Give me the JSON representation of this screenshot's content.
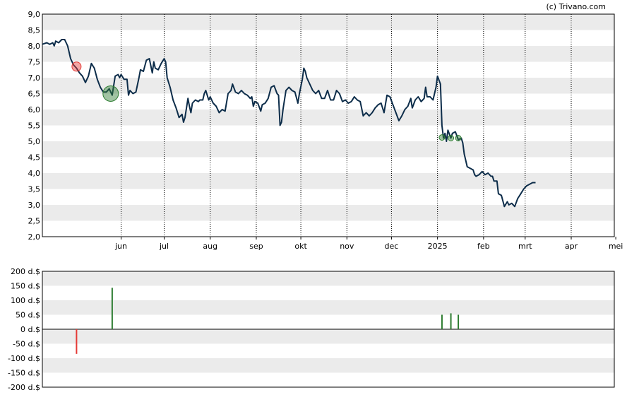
{
  "watermark": "(c) Trivano.com",
  "colors": {
    "price_line": "#0d2d4a",
    "band": "#ebebeb",
    "grid": "#000000",
    "buy": "#2e7d32",
    "sell": "#e53935"
  },
  "chart_data": [
    {
      "type": "line",
      "name": "price",
      "ylim": [
        2.0,
        9.0
      ],
      "y_ticks": [
        "2,0",
        "2,5",
        "3,0",
        "3,5",
        "4,0",
        "4,5",
        "5,0",
        "5,5",
        "6,0",
        "6,5",
        "7,0",
        "7,5",
        "8,0",
        "8,5",
        "9,0"
      ],
      "x_ticks": [
        "jun",
        "jul",
        "aug",
        "sep",
        "okt",
        "nov",
        "dec",
        "2025",
        "feb",
        "mrt",
        "apr",
        "mei"
      ],
      "x_range_days": 365,
      "x_tick_days": [
        53,
        82,
        113,
        144,
        174,
        205,
        235,
        266,
        297,
        325,
        356,
        386
      ],
      "series": [
        {
          "values": [
            [
              0,
              8.05
            ],
            [
              3,
              8.1
            ],
            [
              5,
              8.05
            ],
            [
              7,
              8.1
            ],
            [
              8,
              8.0
            ],
            [
              9,
              8.15
            ],
            [
              11,
              8.1
            ],
            [
              13,
              8.2
            ],
            [
              15,
              8.2
            ],
            [
              17,
              8.0
            ],
            [
              19,
              7.6
            ],
            [
              21,
              7.4
            ],
            [
              23,
              7.3
            ],
            [
              25,
              7.15
            ],
            [
              27,
              7.05
            ],
            [
              29,
              6.85
            ],
            [
              31,
              7.05
            ],
            [
              33,
              7.45
            ],
            [
              35,
              7.3
            ],
            [
              37,
              6.95
            ],
            [
              39,
              6.7
            ],
            [
              41,
              6.55
            ],
            [
              43,
              6.55
            ],
            [
              45,
              6.65
            ],
            [
              47,
              6.45
            ],
            [
              49,
              7.05
            ],
            [
              51,
              7.1
            ],
            [
              52,
              7.0
            ],
            [
              53,
              7.1
            ],
            [
              55,
              6.95
            ],
            [
              57,
              6.95
            ],
            [
              58,
              6.45
            ],
            [
              59,
              6.6
            ],
            [
              61,
              6.5
            ],
            [
              63,
              6.55
            ],
            [
              65,
              7.0
            ],
            [
              66,
              7.25
            ],
            [
              68,
              7.2
            ],
            [
              70,
              7.55
            ],
            [
              72,
              7.6
            ],
            [
              74,
              7.15
            ],
            [
              75,
              7.5
            ],
            [
              76,
              7.3
            ],
            [
              78,
              7.25
            ],
            [
              80,
              7.45
            ],
            [
              82,
              7.6
            ],
            [
              83,
              7.5
            ],
            [
              84,
              7.0
            ],
            [
              86,
              6.7
            ],
            [
              88,
              6.3
            ],
            [
              90,
              6.05
            ],
            [
              92,
              5.75
            ],
            [
              94,
              5.85
            ],
            [
              95,
              5.6
            ],
            [
              96,
              5.75
            ],
            [
              98,
              6.35
            ],
            [
              99,
              6.1
            ],
            [
              100,
              5.9
            ],
            [
              101,
              6.2
            ],
            [
              103,
              6.3
            ],
            [
              105,
              6.25
            ],
            [
              106,
              6.3
            ],
            [
              108,
              6.3
            ],
            [
              109,
              6.5
            ],
            [
              110,
              6.6
            ],
            [
              112,
              6.3
            ],
            [
              113,
              6.4
            ],
            [
              115,
              6.2
            ],
            [
              117,
              6.1
            ],
            [
              119,
              5.9
            ],
            [
              121,
              6.0
            ],
            [
              123,
              5.95
            ],
            [
              125,
              6.5
            ],
            [
              127,
              6.6
            ],
            [
              128,
              6.8
            ],
            [
              130,
              6.55
            ],
            [
              132,
              6.5
            ],
            [
              134,
              6.6
            ],
            [
              136,
              6.5
            ],
            [
              138,
              6.45
            ],
            [
              140,
              6.35
            ],
            [
              141,
              6.4
            ],
            [
              142,
              6.1
            ],
            [
              143,
              6.25
            ],
            [
              145,
              6.2
            ],
            [
              147,
              5.95
            ],
            [
              148,
              6.15
            ],
            [
              150,
              6.2
            ],
            [
              152,
              6.35
            ],
            [
              154,
              6.7
            ],
            [
              156,
              6.75
            ],
            [
              158,
              6.5
            ],
            [
              159,
              6.45
            ],
            [
              160,
              5.5
            ],
            [
              161,
              5.6
            ],
            [
              162,
              6.0
            ],
            [
              164,
              6.6
            ],
            [
              166,
              6.7
            ],
            [
              168,
              6.6
            ],
            [
              170,
              6.55
            ],
            [
              172,
              6.2
            ],
            [
              173,
              6.5
            ],
            [
              175,
              6.95
            ],
            [
              176,
              7.3
            ],
            [
              177,
              7.2
            ],
            [
              178,
              7.0
            ],
            [
              180,
              6.8
            ],
            [
              182,
              6.6
            ],
            [
              184,
              6.5
            ],
            [
              186,
              6.6
            ],
            [
              188,
              6.35
            ],
            [
              190,
              6.35
            ],
            [
              192,
              6.6
            ],
            [
              194,
              6.3
            ],
            [
              196,
              6.3
            ],
            [
              198,
              6.6
            ],
            [
              200,
              6.5
            ],
            [
              202,
              6.25
            ],
            [
              204,
              6.3
            ],
            [
              206,
              6.2
            ],
            [
              208,
              6.25
            ],
            [
              210,
              6.4
            ],
            [
              212,
              6.3
            ],
            [
              214,
              6.25
            ],
            [
              216,
              5.8
            ],
            [
              218,
              5.9
            ],
            [
              220,
              5.8
            ],
            [
              222,
              5.9
            ],
            [
              224,
              6.05
            ],
            [
              226,
              6.15
            ],
            [
              228,
              6.2
            ],
            [
              230,
              5.9
            ],
            [
              232,
              6.45
            ],
            [
              234,
              6.4
            ],
            [
              236,
              6.15
            ],
            [
              238,
              5.9
            ],
            [
              240,
              5.65
            ],
            [
              242,
              5.8
            ],
            [
              244,
              6.0
            ],
            [
              246,
              6.1
            ],
            [
              248,
              6.35
            ],
            [
              249,
              6.05
            ],
            [
              251,
              6.3
            ],
            [
              253,
              6.4
            ],
            [
              255,
              6.25
            ],
            [
              257,
              6.35
            ],
            [
              258,
              6.7
            ],
            [
              259,
              6.4
            ],
            [
              261,
              6.4
            ],
            [
              263,
              6.3
            ],
            [
              265,
              6.7
            ],
            [
              266,
              7.05
            ],
            [
              268,
              6.8
            ],
            [
              269,
              5.5
            ],
            [
              270,
              5.1
            ],
            [
              271,
              5.25
            ],
            [
              272,
              5.0
            ],
            [
              273,
              5.35
            ],
            [
              275,
              5.1
            ],
            [
              276,
              5.25
            ],
            [
              278,
              5.3
            ],
            [
              280,
              5.05
            ],
            [
              282,
              5.1
            ],
            [
              283,
              4.95
            ],
            [
              284,
              4.6
            ],
            [
              286,
              4.2
            ],
            [
              288,
              4.15
            ],
            [
              290,
              4.1
            ],
            [
              291,
              3.95
            ],
            [
              292,
              3.9
            ],
            [
              294,
              3.95
            ],
            [
              296,
              4.05
            ],
            [
              298,
              3.95
            ],
            [
              300,
              4.0
            ],
            [
              302,
              3.9
            ],
            [
              303,
              3.9
            ],
            [
              304,
              3.75
            ],
            [
              306,
              3.75
            ],
            [
              307,
              3.35
            ],
            [
              309,
              3.3
            ],
            [
              311,
              2.95
            ],
            [
              313,
              3.1
            ],
            [
              314,
              3.0
            ],
            [
              316,
              3.05
            ],
            [
              318,
              2.95
            ],
            [
              320,
              3.2
            ],
            [
              322,
              3.35
            ],
            [
              324,
              3.5
            ],
            [
              326,
              3.6
            ],
            [
              328,
              3.65
            ],
            [
              330,
              3.7
            ],
            [
              332,
              3.7
            ]
          ]
        }
      ],
      "markers": [
        {
          "x": 23,
          "y": 7.35,
          "kind": "sell",
          "size": "small"
        },
        {
          "x": 46,
          "y": 6.5,
          "kind": "buy",
          "size": "large"
        },
        {
          "x": 269,
          "y": 5.12,
          "kind": "buy",
          "size": "small"
        },
        {
          "x": 275,
          "y": 5.1,
          "kind": "buy",
          "size": "small"
        },
        {
          "x": 280,
          "y": 5.1,
          "kind": "buy",
          "size": "small"
        }
      ]
    },
    {
      "type": "bar",
      "name": "transactions",
      "ylim": [
        -200,
        200
      ],
      "unit": "d.$",
      "y_ticks": [
        "200 d.$",
        "150 d.$",
        "100 d.$",
        "50 d.$",
        "0 d.$",
        "-50 d.$",
        "-100 d.$",
        "-150 d.$",
        "-200 d.$"
      ],
      "values": [
        {
          "x": 23,
          "value": -85,
          "kind": "sell"
        },
        {
          "x": 47,
          "value": 143,
          "kind": "buy"
        },
        {
          "x": 269,
          "value": 50,
          "kind": "buy"
        },
        {
          "x": 275,
          "value": 55,
          "kind": "buy"
        },
        {
          "x": 280,
          "value": 50,
          "kind": "buy"
        }
      ]
    }
  ]
}
